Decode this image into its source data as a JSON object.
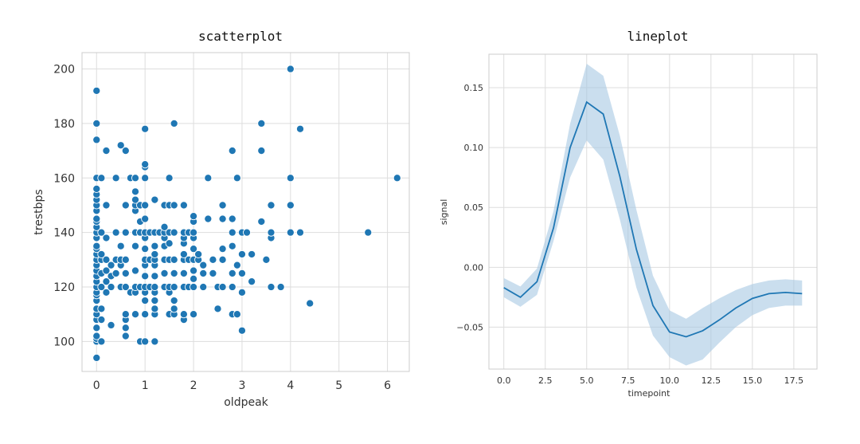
{
  "colors": {
    "series": "#1f77b4",
    "band": "#a6c8e3",
    "grid": "#dddddd",
    "frame": "#cccccc",
    "marker_edge": "#ffffff"
  },
  "chart_data": [
    {
      "type": "scatter",
      "title": "scatterplot",
      "xlabel": "oldpeak",
      "ylabel": "trestbps",
      "xlim": [
        -0.3,
        6.45
      ],
      "ylim": [
        89,
        206
      ],
      "xticks": [
        0,
        1,
        2,
        3,
        4,
        5,
        6
      ],
      "yticks": [
        100,
        120,
        140,
        160,
        180,
        200
      ],
      "grid": true,
      "points": [
        [
          0,
          94
        ],
        [
          0,
          100
        ],
        [
          0,
          101
        ],
        [
          0,
          102
        ],
        [
          0,
          105
        ],
        [
          0,
          108
        ],
        [
          0,
          110
        ],
        [
          0,
          112
        ],
        [
          0,
          115
        ],
        [
          0,
          117
        ],
        [
          0,
          118
        ],
        [
          0,
          120
        ],
        [
          0,
          122
        ],
        [
          0,
          124
        ],
        [
          0,
          126
        ],
        [
          0,
          128
        ],
        [
          0,
          130
        ],
        [
          0,
          132
        ],
        [
          0,
          134
        ],
        [
          0,
          135
        ],
        [
          0,
          138
        ],
        [
          0,
          140
        ],
        [
          0,
          142
        ],
        [
          0,
          144
        ],
        [
          0,
          145
        ],
        [
          0,
          148
        ],
        [
          0,
          150
        ],
        [
          0,
          152
        ],
        [
          0,
          154
        ],
        [
          0,
          156
        ],
        [
          0,
          160
        ],
        [
          0,
          174
        ],
        [
          0,
          180
        ],
        [
          0,
          192
        ],
        [
          0.1,
          100
        ],
        [
          0.1,
          108
        ],
        [
          0.1,
          112
        ],
        [
          0.1,
          120
        ],
        [
          0.1,
          125
        ],
        [
          0.1,
          130
        ],
        [
          0.1,
          132
        ],
        [
          0.1,
          140
        ],
        [
          0.1,
          160
        ],
        [
          0.2,
          118
        ],
        [
          0.2,
          122
        ],
        [
          0.2,
          126
        ],
        [
          0.2,
          130
        ],
        [
          0.2,
          138
        ],
        [
          0.2,
          150
        ],
        [
          0.2,
          170
        ],
        [
          0.3,
          106
        ],
        [
          0.3,
          120
        ],
        [
          0.3,
          124
        ],
        [
          0.3,
          128
        ],
        [
          0.4,
          125
        ],
        [
          0.4,
          130
        ],
        [
          0.4,
          140
        ],
        [
          0.4,
          160
        ],
        [
          0.5,
          120
        ],
        [
          0.5,
          128
        ],
        [
          0.5,
          130
        ],
        [
          0.5,
          135
        ],
        [
          0.5,
          172
        ],
        [
          0.6,
          102
        ],
        [
          0.6,
          105
        ],
        [
          0.6,
          108
        ],
        [
          0.6,
          110
        ],
        [
          0.6,
          120
        ],
        [
          0.6,
          125
        ],
        [
          0.6,
          130
        ],
        [
          0.6,
          140
        ],
        [
          0.6,
          150
        ],
        [
          0.6,
          170
        ],
        [
          0.7,
          118
        ],
        [
          0.7,
          160
        ],
        [
          0.8,
          110
        ],
        [
          0.8,
          118
        ],
        [
          0.8,
          120
        ],
        [
          0.8,
          126
        ],
        [
          0.8,
          135
        ],
        [
          0.8,
          140
        ],
        [
          0.8,
          148
        ],
        [
          0.8,
          150
        ],
        [
          0.8,
          152
        ],
        [
          0.8,
          155
        ],
        [
          0.8,
          160
        ],
        [
          0.9,
          100
        ],
        [
          0.9,
          120
        ],
        [
          0.9,
          140
        ],
        [
          0.9,
          144
        ],
        [
          0.9,
          150
        ],
        [
          1.0,
          100
        ],
        [
          1.0,
          110
        ],
        [
          1.0,
          115
        ],
        [
          1.0,
          118
        ],
        [
          1.0,
          120
        ],
        [
          1.0,
          124
        ],
        [
          1.0,
          128
        ],
        [
          1.0,
          130
        ],
        [
          1.0,
          134
        ],
        [
          1.0,
          138
        ],
        [
          1.0,
          140
        ],
        [
          1.0,
          145
        ],
        [
          1.0,
          150
        ],
        [
          1.0,
          160
        ],
        [
          1.0,
          164
        ],
        [
          1.0,
          165
        ],
        [
          1.0,
          178
        ],
        [
          1.1,
          120
        ],
        [
          1.1,
          130
        ],
        [
          1.1,
          140
        ],
        [
          1.2,
          100
        ],
        [
          1.2,
          110
        ],
        [
          1.2,
          112
        ],
        [
          1.2,
          115
        ],
        [
          1.2,
          118
        ],
        [
          1.2,
          120
        ],
        [
          1.2,
          124
        ],
        [
          1.2,
          128
        ],
        [
          1.2,
          130
        ],
        [
          1.2,
          132
        ],
        [
          1.2,
          135
        ],
        [
          1.2,
          140
        ],
        [
          1.2,
          152
        ],
        [
          1.3,
          140
        ],
        [
          1.4,
          120
        ],
        [
          1.4,
          125
        ],
        [
          1.4,
          130
        ],
        [
          1.4,
          135
        ],
        [
          1.4,
          138
        ],
        [
          1.4,
          140
        ],
        [
          1.4,
          142
        ],
        [
          1.4,
          150
        ],
        [
          1.5,
          110
        ],
        [
          1.5,
          118
        ],
        [
          1.5,
          120
        ],
        [
          1.5,
          130
        ],
        [
          1.5,
          136
        ],
        [
          1.5,
          140
        ],
        [
          1.5,
          150
        ],
        [
          1.5,
          160
        ],
        [
          1.6,
          110
        ],
        [
          1.6,
          112
        ],
        [
          1.6,
          115
        ],
        [
          1.6,
          120
        ],
        [
          1.6,
          125
        ],
        [
          1.6,
          130
        ],
        [
          1.6,
          140
        ],
        [
          1.6,
          150
        ],
        [
          1.6,
          180
        ],
        [
          1.8,
          108
        ],
        [
          1.8,
          110
        ],
        [
          1.8,
          120
        ],
        [
          1.8,
          125
        ],
        [
          1.8,
          130
        ],
        [
          1.8,
          132
        ],
        [
          1.8,
          136
        ],
        [
          1.8,
          138
        ],
        [
          1.8,
          140
        ],
        [
          1.8,
          150
        ],
        [
          1.9,
          120
        ],
        [
          1.9,
          130
        ],
        [
          1.9,
          140
        ],
        [
          2.0,
          110
        ],
        [
          2.0,
          120
        ],
        [
          2.0,
          123
        ],
        [
          2.0,
          126
        ],
        [
          2.0,
          130
        ],
        [
          2.0,
          134
        ],
        [
          2.0,
          138
        ],
        [
          2.0,
          140
        ],
        [
          2.0,
          144
        ],
        [
          2.0,
          146
        ],
        [
          2.1,
          130
        ],
        [
          2.1,
          132
        ],
        [
          2.2,
          120
        ],
        [
          2.2,
          125
        ],
        [
          2.2,
          128
        ],
        [
          2.3,
          145
        ],
        [
          2.3,
          160
        ],
        [
          2.4,
          125
        ],
        [
          2.4,
          130
        ],
        [
          2.5,
          112
        ],
        [
          2.5,
          120
        ],
        [
          2.6,
          120
        ],
        [
          2.6,
          130
        ],
        [
          2.6,
          134
        ],
        [
          2.6,
          145
        ],
        [
          2.6,
          150
        ],
        [
          2.8,
          110
        ],
        [
          2.8,
          120
        ],
        [
          2.8,
          125
        ],
        [
          2.8,
          135
        ],
        [
          2.8,
          140
        ],
        [
          2.8,
          145
        ],
        [
          2.8,
          170
        ],
        [
          2.9,
          110
        ],
        [
          2.9,
          128
        ],
        [
          2.9,
          160
        ],
        [
          3.0,
          104
        ],
        [
          3.0,
          118
        ],
        [
          3.0,
          125
        ],
        [
          3.0,
          132
        ],
        [
          3.0,
          140
        ],
        [
          3.1,
          140
        ],
        [
          3.2,
          122
        ],
        [
          3.2,
          132
        ],
        [
          3.4,
          144
        ],
        [
          3.4,
          170
        ],
        [
          3.4,
          180
        ],
        [
          3.5,
          130
        ],
        [
          3.6,
          120
        ],
        [
          3.6,
          138
        ],
        [
          3.6,
          140
        ],
        [
          3.6,
          150
        ],
        [
          3.8,
          120
        ],
        [
          4.0,
          140
        ],
        [
          4.0,
          150
        ],
        [
          4.0,
          160
        ],
        [
          4.0,
          200
        ],
        [
          4.2,
          140
        ],
        [
          4.2,
          178
        ],
        [
          4.4,
          114
        ],
        [
          5.6,
          140
        ],
        [
          6.2,
          160
        ]
      ]
    },
    {
      "type": "line",
      "title": "lineplot",
      "xlabel": "timepoint",
      "ylabel": "signal",
      "xlim": [
        -0.9,
        18.9
      ],
      "ylim": [
        -0.085,
        0.178
      ],
      "xticks": [
        0.0,
        2.5,
        5.0,
        7.5,
        10.0,
        12.5,
        15.0,
        17.5
      ],
      "xtick_labels": [
        "0.0",
        "2.5",
        "5.0",
        "7.5",
        "10.0",
        "12.5",
        "15.0",
        "17.5"
      ],
      "yticks": [
        -0.05,
        0.0,
        0.05,
        0.1,
        0.15
      ],
      "ytick_labels": [
        "−0.05",
        "0.00",
        "0.05",
        "0.10",
        "0.15"
      ],
      "grid": true,
      "x": [
        0,
        1,
        2,
        3,
        4,
        5,
        6,
        7,
        8,
        9,
        10,
        11,
        12,
        13,
        14,
        15,
        16,
        17,
        18
      ],
      "y": [
        -0.017,
        -0.025,
        -0.012,
        0.033,
        0.1,
        0.138,
        0.128,
        0.076,
        0.015,
        -0.032,
        -0.054,
        -0.058,
        -0.053,
        -0.044,
        -0.034,
        -0.026,
        -0.022,
        -0.021,
        -0.022
      ],
      "ci_low": [
        -0.025,
        -0.033,
        -0.023,
        0.022,
        0.075,
        0.106,
        0.09,
        0.04,
        -0.017,
        -0.057,
        -0.075,
        -0.082,
        -0.077,
        -0.063,
        -0.05,
        -0.04,
        -0.034,
        -0.032,
        -0.032
      ],
      "ci_high": [
        -0.009,
        -0.016,
        -0.001,
        0.047,
        0.12,
        0.17,
        0.16,
        0.11,
        0.048,
        -0.007,
        -0.036,
        -0.043,
        -0.034,
        -0.026,
        -0.019,
        -0.014,
        -0.011,
        -0.01,
        -0.011
      ]
    }
  ]
}
